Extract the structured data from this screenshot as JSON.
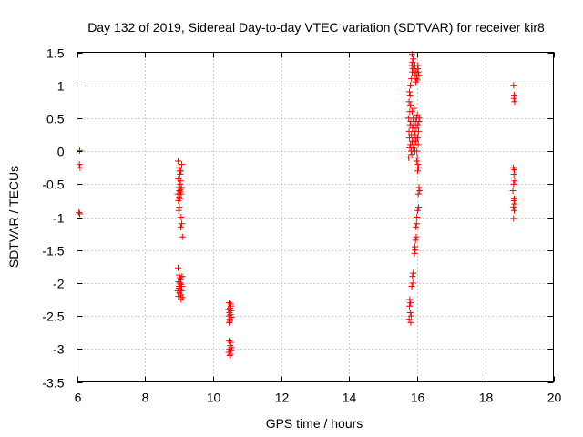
{
  "chart_data": {
    "type": "scatter",
    "title": "Day 132 of 2019, Sidereal Day-to-day VTEC variation (SDTVAR) for receiver kir8",
    "xlabel": "GPS time / hours",
    "ylabel": "SDTVAR / TECUs",
    "xlim": [
      6,
      20
    ],
    "ylim": [
      -3.5,
      1.5
    ],
    "xticks": [
      6,
      8,
      10,
      12,
      14,
      16,
      18,
      20
    ],
    "yticks": [
      1.5,
      1,
      0.5,
      0,
      -0.5,
      -1,
      -1.5,
      -2,
      -2.5,
      -3,
      -3.5
    ],
    "xtick_labels": [
      "6",
      "8",
      "10",
      "12",
      "14",
      "16",
      "18",
      "20"
    ],
    "ytick_labels": [
      "1.5",
      "1",
      "0.5",
      "0",
      "-0.5",
      "-1",
      "-1.5",
      "-2",
      "-2.5",
      "-3",
      "-3.5"
    ],
    "grid": true,
    "marker": "+",
    "color": "#ff0000",
    "series": [
      {
        "name": "SDTVAR",
        "points": [
          [
            6.08,
            0.01
          ],
          [
            6.07,
            -0.2
          ],
          [
            6.09,
            -0.25
          ],
          [
            6.06,
            -0.93
          ],
          [
            6.08,
            -0.95
          ],
          [
            8.97,
            -0.15
          ],
          [
            9.0,
            -0.25
          ],
          [
            9.02,
            -0.3
          ],
          [
            9.05,
            -0.3
          ],
          [
            8.98,
            -0.42
          ],
          [
            9.03,
            -0.5
          ],
          [
            8.99,
            -0.55
          ],
          [
            9.01,
            -0.6
          ],
          [
            9.04,
            -0.62
          ],
          [
            8.96,
            -0.65
          ],
          [
            9.06,
            -0.65
          ],
          [
            9.0,
            -0.7
          ],
          [
            9.02,
            -0.72
          ],
          [
            8.98,
            -0.75
          ],
          [
            9.05,
            -0.58
          ],
          [
            9.07,
            -0.55
          ],
          [
            9.08,
            -0.2
          ],
          [
            9.03,
            -0.35
          ],
          [
            9.01,
            -0.85
          ],
          [
            8.99,
            -0.9
          ],
          [
            9.06,
            -1.0
          ],
          [
            9.08,
            -1.1
          ],
          [
            9.05,
            -1.15
          ],
          [
            9.1,
            -1.3
          ],
          [
            9.04,
            -0.45
          ],
          [
            8.97,
            -1.77
          ],
          [
            9.0,
            -1.88
          ],
          [
            9.02,
            -1.92
          ],
          [
            9.05,
            -1.95
          ],
          [
            8.98,
            -1.98
          ],
          [
            9.03,
            -2.0
          ],
          [
            9.06,
            -2.02
          ],
          [
            9.0,
            -2.05
          ],
          [
            9.08,
            -2.05
          ],
          [
            8.99,
            -2.08
          ],
          [
            9.04,
            -2.1
          ],
          [
            9.07,
            -2.12
          ],
          [
            9.01,
            -2.15
          ],
          [
            9.05,
            -2.18
          ],
          [
            8.98,
            -2.2
          ],
          [
            9.1,
            -2.22
          ],
          [
            9.02,
            -2.0
          ],
          [
            9.09,
            -1.9
          ],
          [
            8.96,
            -2.12
          ],
          [
            9.06,
            -2.25
          ],
          [
            10.47,
            -2.3
          ],
          [
            10.52,
            -2.32
          ],
          [
            10.5,
            -2.38
          ],
          [
            10.45,
            -2.4
          ],
          [
            10.53,
            -2.42
          ],
          [
            10.48,
            -2.45
          ],
          [
            10.51,
            -2.48
          ],
          [
            10.46,
            -2.5
          ],
          [
            10.54,
            -2.52
          ],
          [
            10.49,
            -2.55
          ],
          [
            10.5,
            -2.58
          ],
          [
            10.47,
            -2.6
          ],
          [
            10.52,
            -2.35
          ],
          [
            10.47,
            -2.88
          ],
          [
            10.52,
            -2.9
          ],
          [
            10.5,
            -2.95
          ],
          [
            10.48,
            -3.0
          ],
          [
            10.53,
            -3.02
          ],
          [
            10.46,
            -3.05
          ],
          [
            10.51,
            -3.08
          ],
          [
            10.49,
            -3.1
          ],
          [
            10.54,
            -2.98
          ],
          [
            15.75,
            -0.1
          ],
          [
            15.78,
            0.05
          ],
          [
            15.8,
            0.1
          ],
          [
            15.77,
            0.2
          ],
          [
            15.76,
            0.3
          ],
          [
            15.79,
            0.4
          ],
          [
            15.81,
            0.45
          ],
          [
            15.74,
            0.5
          ],
          [
            15.78,
            0.6
          ],
          [
            15.8,
            0.7
          ],
          [
            15.76,
            0.75
          ],
          [
            15.79,
            0.85
          ],
          [
            15.77,
            0.9
          ],
          [
            15.82,
            0.0
          ],
          [
            15.84,
            -0.05
          ],
          [
            15.85,
            0.15
          ],
          [
            15.83,
            0.25
          ],
          [
            15.86,
            0.35
          ],
          [
            15.88,
            0.5
          ],
          [
            15.87,
            0.05
          ],
          [
            15.9,
            0.2
          ],
          [
            15.92,
            0.3
          ],
          [
            15.89,
            0.4
          ],
          [
            15.91,
            0.1
          ],
          [
            15.93,
            0.0
          ],
          [
            15.95,
            0.45
          ],
          [
            15.97,
            0.35
          ],
          [
            15.94,
            0.25
          ],
          [
            15.96,
            0.15
          ],
          [
            15.98,
            0.5
          ],
          [
            16.0,
            0.55
          ],
          [
            16.02,
            0.4
          ],
          [
            16.04,
            0.3
          ],
          [
            16.01,
            0.2
          ],
          [
            16.03,
            0.1
          ],
          [
            15.99,
            0.0
          ],
          [
            16.05,
            0.45
          ],
          [
            16.06,
            0.5
          ],
          [
            16.0,
            -0.1
          ],
          [
            16.02,
            -0.2
          ],
          [
            16.04,
            -0.25
          ],
          [
            15.98,
            -0.15
          ],
          [
            16.01,
            -0.3
          ],
          [
            15.85,
            0.6
          ],
          [
            15.9,
            0.65
          ],
          [
            15.8,
            1.0
          ],
          [
            15.83,
            1.1
          ],
          [
            15.85,
            1.2
          ],
          [
            15.87,
            1.25
          ],
          [
            15.84,
            1.3
          ],
          [
            15.86,
            1.35
          ],
          [
            15.88,
            1.4
          ],
          [
            15.85,
            1.47
          ],
          [
            15.9,
            1.25
          ],
          [
            15.92,
            1.15
          ],
          [
            15.95,
            1.2
          ],
          [
            15.97,
            1.1
          ],
          [
            15.99,
            1.15
          ],
          [
            16.01,
            1.25
          ],
          [
            16.03,
            1.2
          ],
          [
            16.05,
            1.15
          ],
          [
            15.96,
            1.05
          ],
          [
            16.0,
            1.08
          ],
          [
            15.93,
            1.3
          ],
          [
            16.02,
            1.3
          ],
          [
            16.05,
            -0.55
          ],
          [
            16.07,
            -0.6
          ],
          [
            16.03,
            -0.65
          ],
          [
            16.04,
            -0.85
          ],
          [
            16.01,
            -0.9
          ],
          [
            15.99,
            -1.0
          ],
          [
            15.98,
            -1.1
          ],
          [
            15.96,
            -1.15
          ],
          [
            15.97,
            -1.3
          ],
          [
            15.95,
            -1.35
          ],
          [
            15.93,
            -1.45
          ],
          [
            15.94,
            -1.5
          ],
          [
            15.92,
            -1.55
          ],
          [
            15.88,
            -1.85
          ],
          [
            15.86,
            -1.9
          ],
          [
            15.87,
            -2.0
          ],
          [
            15.84,
            -2.05
          ],
          [
            15.78,
            -2.25
          ],
          [
            15.8,
            -2.3
          ],
          [
            15.77,
            -2.35
          ],
          [
            15.79,
            -2.45
          ],
          [
            15.82,
            -2.5
          ],
          [
            15.76,
            -2.55
          ],
          [
            15.81,
            -2.6
          ],
          [
            18.83,
            1.0
          ],
          [
            18.85,
            0.85
          ],
          [
            18.84,
            0.8
          ],
          [
            18.86,
            0.75
          ],
          [
            18.82,
            -0.25
          ],
          [
            18.85,
            -0.28
          ],
          [
            18.84,
            -0.35
          ],
          [
            18.86,
            -0.45
          ],
          [
            18.83,
            -0.5
          ],
          [
            18.81,
            -0.6
          ],
          [
            18.85,
            -0.72
          ],
          [
            18.84,
            -0.75
          ],
          [
            18.86,
            -0.8
          ],
          [
            18.82,
            -0.85
          ],
          [
            18.85,
            -0.9
          ],
          [
            18.83,
            -1.02
          ]
        ]
      }
    ]
  }
}
